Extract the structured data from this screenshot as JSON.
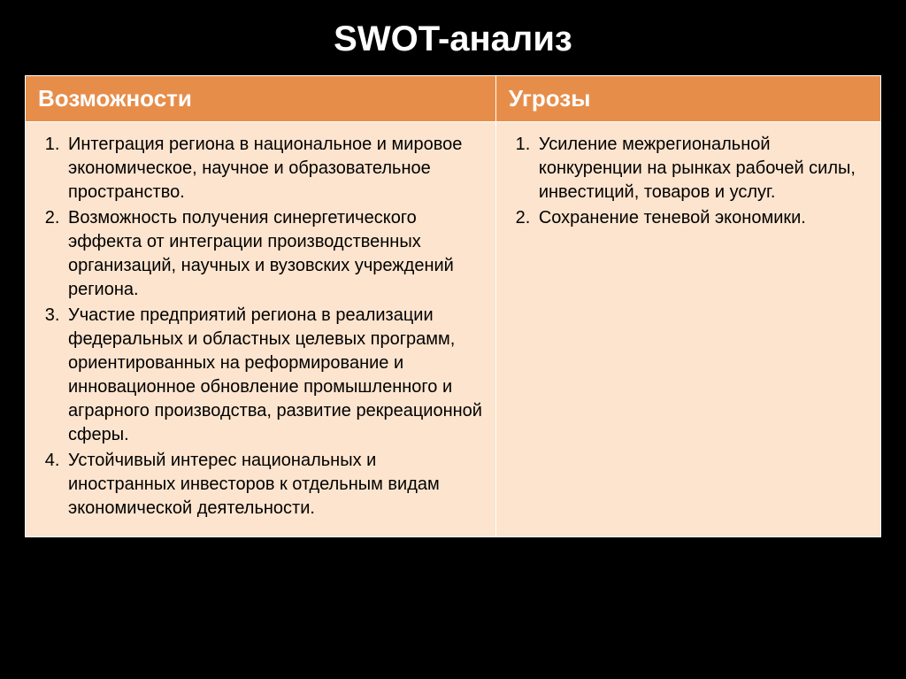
{
  "title": "SWOT-анализ",
  "columns": {
    "left_header": "Возможности",
    "right_header": "Угрозы"
  },
  "opportunities": [
    "Интеграция региона в национальное и мировое экономическое, научное и образовательное пространство.",
    "Возможность получения синергетического эффекта от интеграции производственных организаций, научных и вузовских учреждений региона.",
    "Участие предприятий региона в реализации федеральных и областных целевых программ, ориентированных на реформирование и инновационное обновление промышленного и аграрного производства, развитие рекреационной сферы.",
    "Устойчивый интерес национальных и иностранных инвесторов к отдельным видам экономической деятельности."
  ],
  "threats": [
    "Усиление межрегиональной конкуренции на рынках рабочей силы, инвестиций, товаров и услуг.",
    "Сохранение теневой экономики."
  ],
  "style": {
    "type": "table",
    "background_color": "#000000",
    "title_color": "#ffffff",
    "title_fontsize": 40,
    "title_fontweight": 700,
    "header_bg": "#e78d4a",
    "header_text_color": "#ffffff",
    "header_fontsize": 26,
    "header_fontweight": 700,
    "cell_bg": "#fde4ce",
    "cell_text_color": "#000000",
    "cell_fontsize": 20,
    "border_color": "#ffffff",
    "column_widths_pct": [
      55,
      45
    ],
    "list_style": "decimal"
  }
}
